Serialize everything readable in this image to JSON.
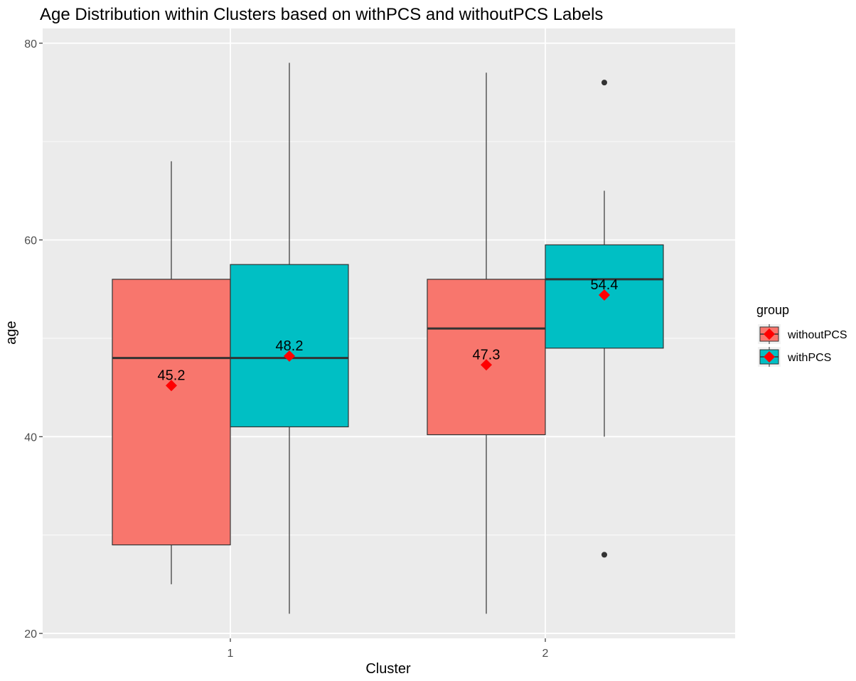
{
  "chart_data": {
    "type": "boxplot",
    "title": "Age Distribution within Clusters based on withPCS and withoutPCS Labels",
    "xlabel": "Cluster",
    "ylabel": "age",
    "categories": [
      "1",
      "2"
    ],
    "ylim": [
      19.5,
      81.5
    ],
    "yticks": [
      20,
      40,
      60,
      80
    ],
    "grid": true,
    "legend": {
      "title": "group",
      "position": "right"
    },
    "series": [
      {
        "name": "withoutPCS",
        "color": "#F8766D",
        "boxes": [
          {
            "category": "1",
            "whisker_low": 25,
            "q1": 29,
            "median": 48,
            "q3": 56,
            "whisker_high": 68,
            "mean": 45.2,
            "mean_label": "45.2",
            "outliers": []
          },
          {
            "category": "2",
            "whisker_low": 22,
            "q1": 40.2,
            "median": 51,
            "q3": 56,
            "whisker_high": 77,
            "mean": 47.3,
            "mean_label": "47.3",
            "outliers": []
          }
        ]
      },
      {
        "name": "withPCS",
        "color": "#00BFC4",
        "boxes": [
          {
            "category": "1",
            "whisker_low": 22,
            "q1": 41,
            "median": 48,
            "q3": 57.5,
            "whisker_high": 78,
            "mean": 48.2,
            "mean_label": "48.2",
            "outliers": []
          },
          {
            "category": "2",
            "whisker_low": 40,
            "q1": 49,
            "median": 56,
            "q3": 59.5,
            "whisker_high": 65,
            "mean": 54.4,
            "mean_label": "54.4",
            "outliers": [
              76,
              28
            ]
          }
        ]
      }
    ],
    "mean_marker_color": "#FF0000",
    "panel_background": "#EBEBEB"
  }
}
